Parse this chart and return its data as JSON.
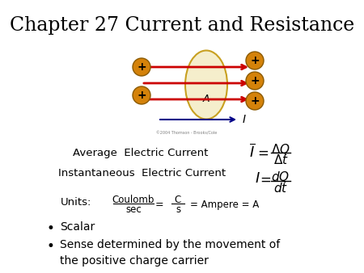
{
  "title": "Chapter 27 Current and Resistance",
  "title_fontsize": 17,
  "background_color": "#ffffff",
  "ellipse_color": "#f5eecc",
  "ellipse_edge_color": "#c8a020",
  "charge_circle_color": "#d4820a",
  "charge_circle_edge": "#8b5a00",
  "arrow_color": "#cc0000",
  "current_arrow_color": "#000088",
  "text_average": "Average  Electric Current",
  "text_instantaneous": "Instantaneous  Electric Current",
  "text_units": "Units:",
  "bullet1": "Scalar",
  "bullet2": "Sense determined by the movement of\nthe positive charge carrier",
  "copyright": "©2004 Thomson - Brooks/Cole"
}
